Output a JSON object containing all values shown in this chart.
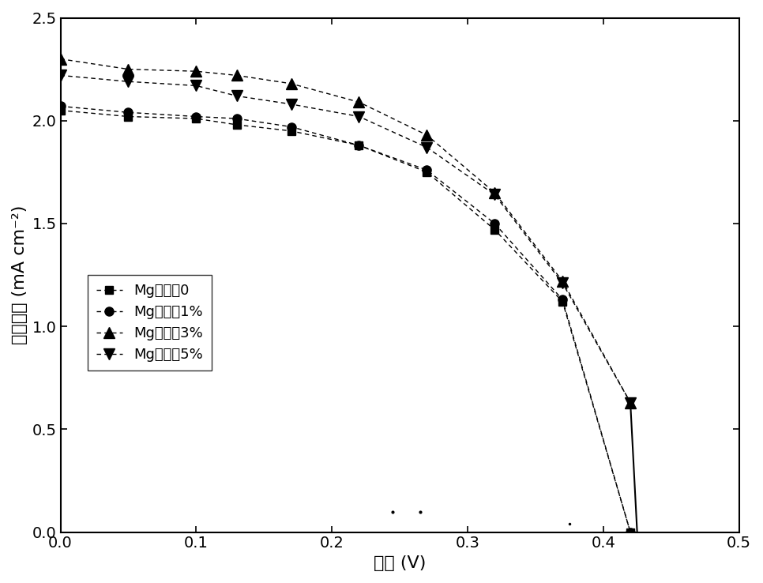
{
  "title": "",
  "xlabel": "电压 (V)",
  "ylabel": "电流密度 (mA cm⁻²)",
  "xlim": [
    0.0,
    0.5
  ],
  "ylim": [
    0.0,
    2.5
  ],
  "xticks": [
    0.0,
    0.1,
    0.2,
    0.3,
    0.4,
    0.5
  ],
  "yticks": [
    0.0,
    0.5,
    1.0,
    1.5,
    2.0,
    2.5
  ],
  "series": [
    {
      "label": "Mg掺杂量0",
      "marker": "s",
      "linestyle": "--",
      "markersize": 7,
      "x": [
        0.0,
        0.05,
        0.1,
        0.13,
        0.17,
        0.22,
        0.27,
        0.32,
        0.37,
        0.42
      ],
      "y": [
        2.05,
        2.02,
        2.01,
        1.98,
        1.95,
        1.88,
        1.75,
        1.47,
        1.12,
        0.0
      ]
    },
    {
      "label": "Mg掺杂量1%",
      "marker": "o",
      "linestyle": "--",
      "markersize": 8,
      "x": [
        0.0,
        0.05,
        0.1,
        0.13,
        0.17,
        0.22,
        0.27,
        0.32,
        0.37,
        0.42
      ],
      "y": [
        2.07,
        2.04,
        2.02,
        2.01,
        1.97,
        1.88,
        1.76,
        1.5,
        1.13,
        0.0
      ]
    },
    {
      "label": "Mg掺杂量3%",
      "marker": "^",
      "linestyle": "--",
      "markersize": 10,
      "x": [
        0.0,
        0.05,
        0.1,
        0.13,
        0.17,
        0.22,
        0.27,
        0.32,
        0.37,
        0.42
      ],
      "y": [
        2.3,
        2.25,
        2.24,
        2.22,
        2.18,
        2.09,
        1.93,
        1.65,
        1.22,
        0.63
      ]
    },
    {
      "label": "Mg掺杂量5%",
      "marker": "v",
      "linestyle": "--",
      "markersize": 10,
      "x": [
        0.0,
        0.05,
        0.1,
        0.13,
        0.17,
        0.22,
        0.27,
        0.32,
        0.37,
        0.42
      ],
      "y": [
        2.22,
        2.19,
        2.17,
        2.12,
        2.08,
        2.02,
        1.87,
        1.64,
        1.21,
        0.63
      ]
    }
  ],
  "solid_line_3pct": {
    "x": [
      0.42,
      0.425
    ],
    "y": [
      0.63,
      0.0
    ]
  },
  "solid_line_5pct": {
    "x": [
      0.42,
      0.425
    ],
    "y": [
      0.63,
      0.0
    ]
  },
  "noise_dots": {
    "x": [
      0.245,
      0.265
    ],
    "y": [
      0.1,
      0.1
    ]
  },
  "noise_dot2": {
    "x": [
      0.375
    ],
    "y": [
      0.04
    ]
  },
  "background_color": "#ffffff",
  "fontsize_axis_label": 16,
  "fontsize_tick": 14,
  "fontsize_legend": 13
}
